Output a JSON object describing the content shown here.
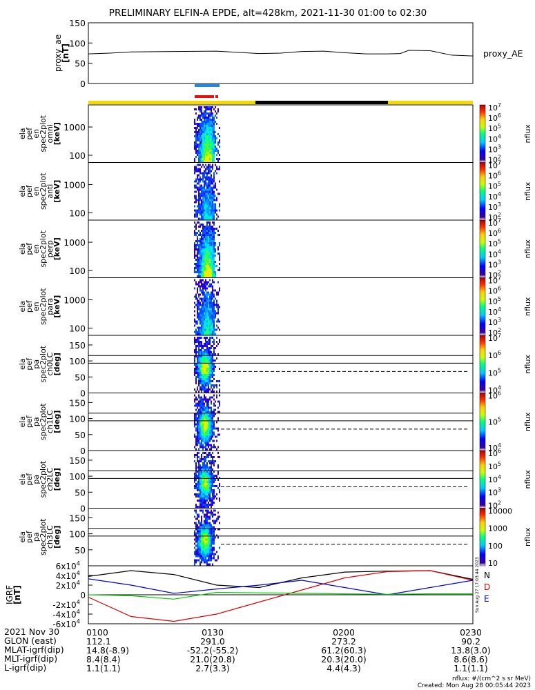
{
  "title": "PRELIMINARY ELFIN-A EPDE, alt=428km, 2021-11-30 01:00 to 02:30",
  "time_axis": {
    "start": "01:00",
    "end": "02:30"
  },
  "chart_data": [
    {
      "type": "line",
      "id": "ae",
      "ylabel": [
        "proxy_ae",
        "[nT]"
      ],
      "ylim": [
        0,
        150
      ],
      "yticks": [
        0,
        50,
        100,
        150
      ],
      "legend": "proxy_AE",
      "series": [
        {
          "name": "proxy_AE",
          "x": [
            "01:00",
            "01:05",
            "01:10",
            "01:20",
            "01:30",
            "01:40",
            "01:45",
            "01:50",
            "01:55",
            "02:00",
            "02:05",
            "02:10",
            "02:13",
            "02:15",
            "02:20",
            "02:25",
            "02:30"
          ],
          "values": [
            73,
            75,
            78,
            79,
            80,
            74,
            75,
            79,
            80,
            76,
            73,
            73,
            74,
            82,
            81,
            70,
            68
          ]
        }
      ]
    },
    {
      "type": "heatmap",
      "id": "en-omni",
      "ylabel": [
        "ela",
        "pef",
        "en",
        "spec2plot",
        "omni",
        "[keV]"
      ],
      "ytick_labels": [
        "100",
        "1000"
      ],
      "scale": "log",
      "colorbar": {
        "label": "nflux",
        "ticks": [
          "10^2",
          "10^3",
          "10^4",
          "10^5",
          "10^6",
          "10^7"
        ]
      },
      "intensity": 0.9
    },
    {
      "type": "heatmap",
      "id": "en-anti",
      "ylabel": [
        "ela",
        "pef",
        "en",
        "spec2plot",
        "anti",
        "[keV]"
      ],
      "ytick_labels": [
        "100",
        "1000"
      ],
      "scale": "log",
      "colorbar": {
        "label": "nflux",
        "ticks": [
          "10^2",
          "10^3",
          "10^4",
          "10^5",
          "10^6",
          "10^7"
        ]
      },
      "intensity": 0.45
    },
    {
      "type": "heatmap",
      "id": "en-perp",
      "ylabel": [
        "ela",
        "pef",
        "en",
        "spec2plot",
        "perp",
        "[keV]"
      ],
      "ytick_labels": [
        "100",
        "1000"
      ],
      "scale": "log",
      "colorbar": {
        "label": "nflux",
        "ticks": [
          "10^2",
          "10^3",
          "10^4",
          "10^5",
          "10^6",
          "10^7"
        ]
      },
      "intensity": 0.9
    },
    {
      "type": "heatmap",
      "id": "en-para",
      "ylabel": [
        "ela",
        "pef",
        "en",
        "spec2plot",
        "para",
        "[keV]"
      ],
      "ytick_labels": [
        "100",
        "1000"
      ],
      "scale": "log",
      "colorbar": {
        "label": "nflux",
        "ticks": [
          "10^2",
          "10^3",
          "10^4",
          "10^5",
          "10^6",
          "10^7"
        ]
      },
      "intensity": 0.5
    },
    {
      "type": "heatmap",
      "id": "pa-ch0",
      "ylabel": [
        "ela",
        "pef",
        "pa",
        "spec2plot",
        "ch0LC",
        "[deg]"
      ],
      "ytick_labels": [
        "0",
        "50",
        "100",
        "150"
      ],
      "ylim": [
        0,
        180
      ],
      "colorbar": {
        "label": "nflux",
        "ticks": [
          "10^4",
          "10^5",
          "10^6",
          "10^7"
        ]
      },
      "intensity": 0.8,
      "lc_lines": [
        117,
        93
      ],
      "dashed": 67
    },
    {
      "type": "heatmap",
      "id": "pa-ch1",
      "ylabel": [
        "ela",
        "pef",
        "pa",
        "spec2plot",
        "ch1LC",
        "[deg]"
      ],
      "ytick_labels": [
        "0",
        "50",
        "100",
        "150"
      ],
      "ylim": [
        0,
        180
      ],
      "colorbar": {
        "label": "nflux",
        "ticks": [
          "10^4",
          "10^5",
          "10^6"
        ]
      },
      "intensity": 0.8,
      "lc_lines": [
        117,
        93
      ],
      "dashed": 67
    },
    {
      "type": "heatmap",
      "id": "pa-ch2",
      "ylabel": [
        "ela",
        "pef",
        "pa",
        "spec2plot",
        "ch2LC",
        "[deg]"
      ],
      "ytick_labels": [
        "0",
        "50",
        "100",
        "150"
      ],
      "ylim": [
        0,
        180
      ],
      "colorbar": {
        "label": "nflux",
        "ticks": [
          "10^2",
          "10^3",
          "10^4",
          "10^5",
          "10^6"
        ]
      },
      "intensity": 0.7,
      "lc_lines": [
        117,
        93
      ],
      "dashed": 67
    },
    {
      "type": "heatmap",
      "id": "pa-ch3",
      "ylabel": [
        "ela",
        "pef",
        "pa",
        "spec2plot",
        "ch3LC",
        "[deg]"
      ],
      "ytick_labels": [
        "50",
        "100",
        "150"
      ],
      "ylim": [
        0,
        180
      ],
      "colorbar": {
        "label": "nflux",
        "ticks": [
          "10",
          "100",
          "1000",
          "10000"
        ]
      },
      "intensity": 0.75,
      "lc_lines": [
        117,
        93
      ],
      "dashed": 67
    },
    {
      "type": "line",
      "id": "igrf",
      "ylabel": [
        "IGRF",
        "[nT]"
      ],
      "ylim": [
        -60000,
        60000
      ],
      "ytick_labels": [
        "-6x10^4",
        "-4x10^4",
        "-2x10^4",
        "0",
        "2x10^4",
        "4x10^4",
        "6x10^4"
      ],
      "series": [
        {
          "name": "N",
          "color": "#000000",
          "x": [
            "01:00",
            "01:10",
            "01:20",
            "01:30",
            "01:40",
            "01:50",
            "02:00",
            "02:10",
            "02:20",
            "02:30"
          ],
          "values": [
            38000,
            50000,
            42000,
            20000,
            15000,
            35000,
            47000,
            49000,
            50000,
            32000
          ]
        },
        {
          "name": "D",
          "color": "#dd0000",
          "x": [
            "01:00",
            "01:10",
            "01:20",
            "01:30",
            "01:40",
            "01:50",
            "02:00",
            "02:10",
            "02:20",
            "02:30"
          ],
          "values": [
            -5000,
            -45000,
            -55000,
            -40000,
            -15000,
            10000,
            35000,
            48000,
            50000,
            30000
          ]
        },
        {
          "name": "E",
          "color": "#0000cc",
          "x": [
            "01:00",
            "01:10",
            "01:20",
            "01:30",
            "01:40",
            "01:50",
            "02:00",
            "02:10",
            "02:20",
            "02:30"
          ],
          "values": [
            33000,
            20000,
            3000,
            12000,
            20000,
            30000,
            15000,
            0,
            15000,
            30000
          ]
        },
        {
          "name": "",
          "color": "#00cc00",
          "x": [
            "01:00",
            "01:10",
            "01:20",
            "01:30",
            "01:40",
            "01:50",
            "02:00",
            "02:10",
            "02:20",
            "02:30"
          ],
          "values": [
            0,
            -2000,
            -9000,
            5000,
            4000,
            3000,
            2000,
            1000,
            2000,
            2000
          ]
        }
      ],
      "side_text": "Sun Aug 27 17:03:44 2023"
    }
  ],
  "footer": {
    "rows": [
      {
        "label": "2021 Nov 30",
        "values": [
          "0100",
          "0130",
          "0200",
          "0230"
        ]
      },
      {
        "label": "GLON (east)",
        "values": [
          "112.1",
          "291.0",
          "273.2",
          "90.2"
        ]
      },
      {
        "label": "MLAT-igrf(dip)",
        "values": [
          "14.8(-8.9)",
          "-52.2(-55.2)",
          "61.2(60.3)",
          "13.8(3.0)"
        ]
      },
      {
        "label": "MLT-igrf(dip)",
        "values": [
          "8.4(8.4)",
          "21.0(20.8)",
          "20.3(20.0)",
          "8.6(8.6)"
        ]
      },
      {
        "label": "L-igrf(dip)",
        "values": [
          "1.1(1.1)",
          "2.7(3.3)",
          "4.4(4.3)",
          "1.1(1.1)"
        ]
      }
    ],
    "note1": "nflux: #/(cm^2 s sr MeV)",
    "note2": "Created: Mon Aug 28 00:05:44 2023"
  },
  "colors": {
    "bar_yellow": "#f5d800",
    "bar_black": "#000000",
    "blue_bar": "#1e88e5",
    "red_bar": "#e11111"
  }
}
